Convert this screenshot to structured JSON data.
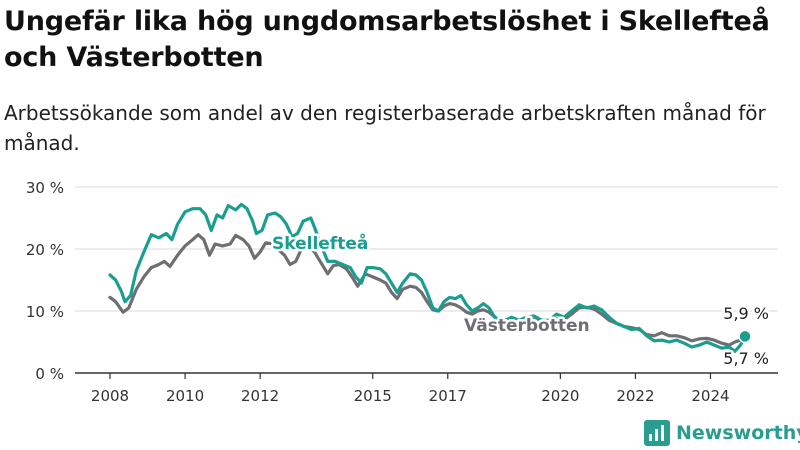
{
  "header": {
    "title": "Ungefär lika hög ungdomsarbetslöshet i Skellefteå och Västerbotten",
    "subtitle": "Arbetssökande som andel av den registerbaserade arbetskraften månad för månad."
  },
  "brand": {
    "name": "Newsworthy"
  },
  "colors": {
    "skelleftea": "#1a9e8f",
    "vasterbotten": "#6e6e73",
    "grid": "#d9d9d9",
    "axis": "#333333"
  },
  "chart_data": {
    "type": "line",
    "title": "Ungefär lika hög ungdomsarbetslöshet i Skellefteå och Västerbotten",
    "subtitle": "Arbetssökande som andel av den registerbaserade arbetskraften månad för månad.",
    "xlabel": "",
    "ylabel": "",
    "xlim": [
      2008,
      2025.4
    ],
    "ylim": [
      0,
      30
    ],
    "y_ticks": [
      0,
      10,
      20,
      30
    ],
    "y_tick_labels": [
      "0 %",
      "10 %",
      "20 %",
      "30 %"
    ],
    "x_ticks": [
      2008,
      2010,
      2012,
      2015,
      2017,
      2020,
      2022,
      2024
    ],
    "x_tick_labels": [
      "2008",
      "2010",
      "2012",
      "2015",
      "2017",
      "2020",
      "2022",
      "2024"
    ],
    "grid": true,
    "series": [
      {
        "name": "Skellefteå",
        "color": "#1a9e8f",
        "points": [
          [
            2008.0,
            15.8
          ],
          [
            2008.15,
            15.0
          ],
          [
            2008.3,
            13.2
          ],
          [
            2008.4,
            11.5
          ],
          [
            2008.55,
            12.5
          ],
          [
            2008.7,
            16.5
          ],
          [
            2008.9,
            19.5
          ],
          [
            2009.1,
            22.3
          ],
          [
            2009.3,
            21.8
          ],
          [
            2009.5,
            22.5
          ],
          [
            2009.65,
            21.5
          ],
          [
            2009.8,
            24.0
          ],
          [
            2010.0,
            26.0
          ],
          [
            2010.2,
            26.5
          ],
          [
            2010.4,
            26.5
          ],
          [
            2010.55,
            25.5
          ],
          [
            2010.7,
            23.0
          ],
          [
            2010.85,
            25.5
          ],
          [
            2011.0,
            25.0
          ],
          [
            2011.15,
            27.0
          ],
          [
            2011.35,
            26.3
          ],
          [
            2011.5,
            27.2
          ],
          [
            2011.65,
            26.5
          ],
          [
            2011.8,
            24.5
          ],
          [
            2011.9,
            22.5
          ],
          [
            2012.05,
            23.0
          ],
          [
            2012.2,
            25.5
          ],
          [
            2012.4,
            25.8
          ],
          [
            2012.55,
            25.2
          ],
          [
            2012.7,
            24.0
          ],
          [
            2012.85,
            22.0
          ],
          [
            2013.0,
            22.5
          ],
          [
            2013.15,
            24.5
          ],
          [
            2013.35,
            25.0
          ],
          [
            2013.45,
            23.5
          ],
          [
            2013.6,
            21.0
          ],
          [
            2013.8,
            18.0
          ],
          [
            2014.0,
            18.0
          ],
          [
            2014.2,
            17.5
          ],
          [
            2014.4,
            17.0
          ],
          [
            2014.55,
            15.5
          ],
          [
            2014.7,
            14.5
          ],
          [
            2014.85,
            17.0
          ],
          [
            2015.0,
            17.0
          ],
          [
            2015.2,
            16.8
          ],
          [
            2015.35,
            16.0
          ],
          [
            2015.5,
            14.5
          ],
          [
            2015.65,
            13.0
          ],
          [
            2015.8,
            14.5
          ],
          [
            2016.0,
            16.0
          ],
          [
            2016.15,
            15.8
          ],
          [
            2016.3,
            15.0
          ],
          [
            2016.45,
            13.0
          ],
          [
            2016.6,
            10.5
          ],
          [
            2016.75,
            10.0
          ],
          [
            2016.9,
            11.5
          ],
          [
            2017.05,
            12.2
          ],
          [
            2017.2,
            12.0
          ],
          [
            2017.35,
            12.5
          ],
          [
            2017.5,
            11.0
          ],
          [
            2017.65,
            10.0
          ],
          [
            2017.8,
            10.5
          ],
          [
            2017.95,
            11.2
          ],
          [
            2018.1,
            10.5
          ],
          [
            2018.25,
            9.0
          ],
          [
            2018.4,
            8.5
          ],
          [
            2018.55,
            8.5
          ],
          [
            2018.7,
            9.0
          ],
          [
            2018.9,
            8.5
          ],
          [
            2019.1,
            9.0
          ],
          [
            2019.3,
            9.2
          ],
          [
            2019.5,
            8.5
          ],
          [
            2019.7,
            8.5
          ],
          [
            2019.9,
            9.5
          ],
          [
            2020.1,
            9.0
          ],
          [
            2020.3,
            10.0
          ],
          [
            2020.5,
            11.0
          ],
          [
            2020.7,
            10.5
          ],
          [
            2020.9,
            10.8
          ],
          [
            2021.1,
            10.2
          ],
          [
            2021.3,
            9.0
          ],
          [
            2021.5,
            8.0
          ],
          [
            2021.7,
            7.5
          ],
          [
            2021.9,
            7.0
          ],
          [
            2022.1,
            7.2
          ],
          [
            2022.3,
            6.0
          ],
          [
            2022.5,
            5.2
          ],
          [
            2022.7,
            5.3
          ],
          [
            2022.9,
            5.0
          ],
          [
            2023.1,
            5.3
          ],
          [
            2023.3,
            4.8
          ],
          [
            2023.5,
            4.2
          ],
          [
            2023.7,
            4.5
          ],
          [
            2023.9,
            5.0
          ],
          [
            2024.1,
            4.5
          ],
          [
            2024.3,
            4.0
          ],
          [
            2024.5,
            4.2
          ],
          [
            2024.65,
            3.5
          ],
          [
            2024.8,
            4.5
          ],
          [
            2024.92,
            5.9
          ]
        ]
      },
      {
        "name": "Västerbotten",
        "color": "#6e6e73",
        "points": [
          [
            2008.0,
            12.2
          ],
          [
            2008.15,
            11.5
          ],
          [
            2008.35,
            9.8
          ],
          [
            2008.5,
            10.5
          ],
          [
            2008.7,
            13.5
          ],
          [
            2008.9,
            15.5
          ],
          [
            2009.1,
            17.0
          ],
          [
            2009.3,
            17.5
          ],
          [
            2009.45,
            18.0
          ],
          [
            2009.6,
            17.2
          ],
          [
            2009.8,
            19.0
          ],
          [
            2010.0,
            20.5
          ],
          [
            2010.2,
            21.5
          ],
          [
            2010.35,
            22.3
          ],
          [
            2010.5,
            21.5
          ],
          [
            2010.65,
            19.0
          ],
          [
            2010.8,
            20.8
          ],
          [
            2011.0,
            20.5
          ],
          [
            2011.2,
            20.8
          ],
          [
            2011.35,
            22.2
          ],
          [
            2011.55,
            21.5
          ],
          [
            2011.7,
            20.5
          ],
          [
            2011.85,
            18.5
          ],
          [
            2012.0,
            19.5
          ],
          [
            2012.15,
            21.0
          ],
          [
            2012.35,
            20.8
          ],
          [
            2012.5,
            19.8
          ],
          [
            2012.65,
            19.0
          ],
          [
            2012.8,
            17.5
          ],
          [
            2012.95,
            18.0
          ],
          [
            2013.1,
            20.0
          ],
          [
            2013.3,
            20.3
          ],
          [
            2013.45,
            19.5
          ],
          [
            2013.6,
            18.0
          ],
          [
            2013.8,
            16.0
          ],
          [
            2013.95,
            17.3
          ],
          [
            2014.1,
            17.5
          ],
          [
            2014.3,
            16.8
          ],
          [
            2014.45,
            15.5
          ],
          [
            2014.6,
            14.0
          ],
          [
            2014.8,
            16.0
          ],
          [
            2015.0,
            15.5
          ],
          [
            2015.2,
            15.0
          ],
          [
            2015.35,
            14.5
          ],
          [
            2015.5,
            13.0
          ],
          [
            2015.65,
            12.0
          ],
          [
            2015.8,
            13.5
          ],
          [
            2016.0,
            14.0
          ],
          [
            2016.15,
            13.8
          ],
          [
            2016.3,
            13.0
          ],
          [
            2016.45,
            11.5
          ],
          [
            2016.6,
            10.2
          ],
          [
            2016.75,
            10.0
          ],
          [
            2016.9,
            10.8
          ],
          [
            2017.05,
            11.2
          ],
          [
            2017.2,
            11.0
          ],
          [
            2017.35,
            10.5
          ],
          [
            2017.5,
            9.8
          ],
          [
            2017.65,
            9.5
          ],
          [
            2017.8,
            10.0
          ],
          [
            2017.95,
            10.2
          ],
          [
            2018.1,
            9.8
          ],
          [
            2018.3,
            8.8
          ],
          [
            2018.5,
            8.5
          ],
          [
            2018.7,
            8.8
          ],
          [
            2018.9,
            8.5
          ],
          [
            2019.1,
            8.8
          ],
          [
            2019.3,
            8.6
          ],
          [
            2019.5,
            8.2
          ],
          [
            2019.7,
            8.3
          ],
          [
            2019.9,
            8.8
          ],
          [
            2020.1,
            8.6
          ],
          [
            2020.3,
            9.5
          ],
          [
            2020.5,
            10.5
          ],
          [
            2020.7,
            10.6
          ],
          [
            2020.9,
            10.3
          ],
          [
            2021.1,
            9.5
          ],
          [
            2021.3,
            8.5
          ],
          [
            2021.5,
            8.0
          ],
          [
            2021.7,
            7.5
          ],
          [
            2021.9,
            7.3
          ],
          [
            2022.1,
            7.0
          ],
          [
            2022.3,
            6.2
          ],
          [
            2022.5,
            6.0
          ],
          [
            2022.7,
            6.5
          ],
          [
            2022.9,
            6.0
          ],
          [
            2023.1,
            6.0
          ],
          [
            2023.3,
            5.7
          ],
          [
            2023.5,
            5.2
          ],
          [
            2023.7,
            5.5
          ],
          [
            2023.9,
            5.6
          ],
          [
            2024.1,
            5.3
          ],
          [
            2024.3,
            4.8
          ],
          [
            2024.5,
            4.5
          ],
          [
            2024.65,
            5.0
          ],
          [
            2024.8,
            5.3
          ],
          [
            2024.92,
            5.7
          ]
        ]
      }
    ],
    "labels": {
      "skelleftea": "Skellefteå",
      "vasterbotten": "Västerbotten",
      "end_skelleftea": "5,9 %",
      "end_vasterbotten": "5,7 %"
    }
  }
}
